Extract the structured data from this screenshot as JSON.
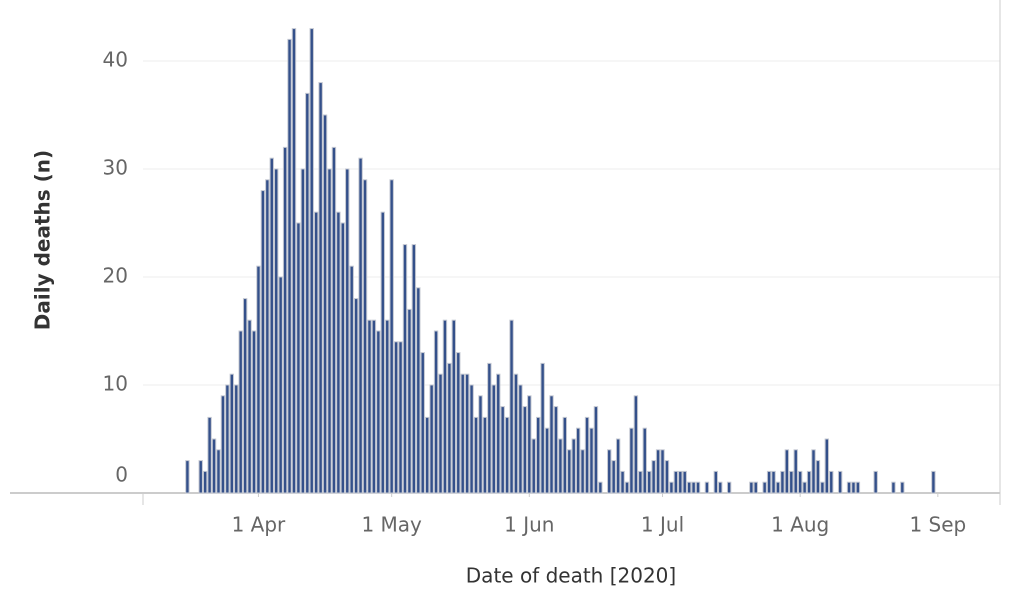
{
  "chart_data": {
    "type": "bar",
    "x_label": "Date of death [2020]",
    "y_label": "Daily deaths (n)",
    "color": "#34508a",
    "grid": true,
    "xlim": [
      "2020-03-06",
      "2020-09-15"
    ],
    "xticks": [
      {
        "value": "2020-04-01",
        "label": "1 Apr"
      },
      {
        "value": "2020-05-01",
        "label": "1 May"
      },
      {
        "value": "2020-06-01",
        "label": "1 Jun"
      },
      {
        "value": "2020-07-01",
        "label": "1 Jul"
      },
      {
        "value": "2020-08-01",
        "label": "1 Aug"
      },
      {
        "value": "2020-09-01",
        "label": "1 Sep"
      }
    ],
    "ylim": [
      0,
      45.6
    ],
    "yticks": [
      0,
      10,
      20,
      30,
      40
    ],
    "x": [
      "2020-03-16",
      "2020-03-19",
      "2020-03-20",
      "2020-03-21",
      "2020-03-22",
      "2020-03-23",
      "2020-03-24",
      "2020-03-25",
      "2020-03-26",
      "2020-03-27",
      "2020-03-28",
      "2020-03-29",
      "2020-03-30",
      "2020-03-31",
      "2020-04-01",
      "2020-04-02",
      "2020-04-03",
      "2020-04-04",
      "2020-04-05",
      "2020-04-06",
      "2020-04-07",
      "2020-04-08",
      "2020-04-09",
      "2020-04-10",
      "2020-04-11",
      "2020-04-12",
      "2020-04-13",
      "2020-04-14",
      "2020-04-15",
      "2020-04-16",
      "2020-04-17",
      "2020-04-18",
      "2020-04-19",
      "2020-04-20",
      "2020-04-21",
      "2020-04-22",
      "2020-04-23",
      "2020-04-24",
      "2020-04-25",
      "2020-04-26",
      "2020-04-27",
      "2020-04-28",
      "2020-04-29",
      "2020-04-30",
      "2020-05-01",
      "2020-05-02",
      "2020-05-03",
      "2020-05-04",
      "2020-05-05",
      "2020-05-06",
      "2020-05-07",
      "2020-05-08",
      "2020-05-09",
      "2020-05-10",
      "2020-05-11",
      "2020-05-12",
      "2020-05-13",
      "2020-05-14",
      "2020-05-15",
      "2020-05-16",
      "2020-05-17",
      "2020-05-18",
      "2020-05-19",
      "2020-05-20",
      "2020-05-21",
      "2020-05-22",
      "2020-05-23",
      "2020-05-24",
      "2020-05-25",
      "2020-05-26",
      "2020-05-27",
      "2020-05-28",
      "2020-05-29",
      "2020-05-30",
      "2020-05-31",
      "2020-06-01",
      "2020-06-02",
      "2020-06-03",
      "2020-06-04",
      "2020-06-05",
      "2020-06-06",
      "2020-06-07",
      "2020-06-08",
      "2020-06-09",
      "2020-06-10",
      "2020-06-11",
      "2020-06-12",
      "2020-06-13",
      "2020-06-14",
      "2020-06-15",
      "2020-06-16",
      "2020-06-17",
      "2020-06-19",
      "2020-06-20",
      "2020-06-21",
      "2020-06-22",
      "2020-06-23",
      "2020-06-24",
      "2020-06-25",
      "2020-06-26",
      "2020-06-27",
      "2020-06-28",
      "2020-06-29",
      "2020-06-30",
      "2020-07-01",
      "2020-07-02",
      "2020-07-03",
      "2020-07-04",
      "2020-07-05",
      "2020-07-06",
      "2020-07-07",
      "2020-07-08",
      "2020-07-09",
      "2020-07-11",
      "2020-07-13",
      "2020-07-14",
      "2020-07-16",
      "2020-07-21",
      "2020-07-22",
      "2020-07-24",
      "2020-07-25",
      "2020-07-26",
      "2020-07-27",
      "2020-07-28",
      "2020-07-29",
      "2020-07-30",
      "2020-07-31",
      "2020-08-01",
      "2020-08-02",
      "2020-08-03",
      "2020-08-04",
      "2020-08-05",
      "2020-08-06",
      "2020-08-07",
      "2020-08-08",
      "2020-08-10",
      "2020-08-12",
      "2020-08-13",
      "2020-08-14",
      "2020-08-18",
      "2020-08-22",
      "2020-08-24",
      "2020-08-31"
    ],
    "values": [
      3,
      3,
      2,
      7,
      5,
      4,
      9,
      10,
      11,
      10,
      15,
      18,
      16,
      15,
      21,
      28,
      29,
      31,
      30,
      20,
      32,
      42,
      43,
      25,
      30,
      37,
      43,
      26,
      38,
      35,
      30,
      32,
      26,
      25,
      30,
      21,
      18,
      31,
      29,
      16,
      16,
      15,
      26,
      16,
      29,
      14,
      14,
      23,
      17,
      23,
      19,
      13,
      7,
      10,
      15,
      11,
      16,
      12,
      16,
      13,
      11,
      11,
      10,
      7,
      9,
      7,
      12,
      10,
      11,
      8,
      7,
      16,
      11,
      10,
      8,
      9,
      5,
      7,
      12,
      6,
      9,
      8,
      5,
      7,
      4,
      5,
      6,
      4,
      7,
      6,
      8,
      1,
      4,
      3,
      5,
      2,
      1,
      6,
      9,
      2,
      6,
      2,
      3,
      4,
      4,
      3,
      1,
      2,
      2,
      2,
      1,
      1,
      1,
      1,
      2,
      1,
      1,
      1,
      1,
      1,
      2,
      2,
      1,
      2,
      4,
      2,
      4,
      2,
      1,
      2,
      4,
      3,
      1,
      5,
      2,
      2,
      1,
      1,
      1,
      2,
      1,
      1,
      2
    ]
  }
}
